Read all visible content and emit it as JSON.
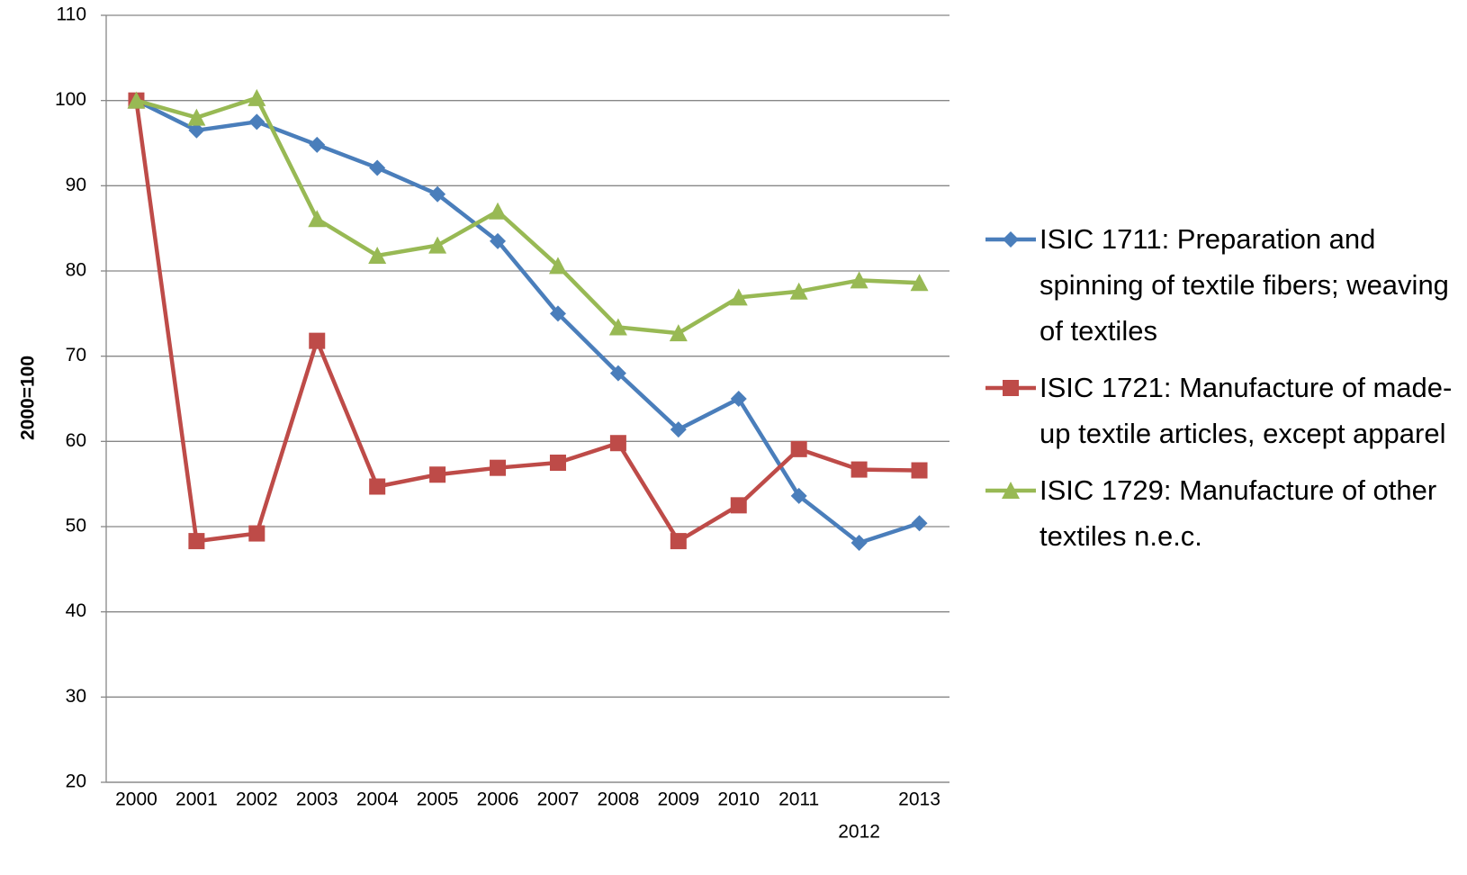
{
  "chart_data": {
    "type": "line",
    "y_label": "2000=100",
    "categories": [
      "2000",
      "2001",
      "2002",
      "2003",
      "2004",
      "2005",
      "2006",
      "2007",
      "2008",
      "2009",
      "2010",
      "2011",
      "2012",
      "2013"
    ],
    "series": [
      {
        "name": "ISIC 1711: Preparation and spinning of textile fibers; weaving of textiles",
        "color": "#4a7ebb",
        "marker": "diamond",
        "values": [
          100,
          96.5,
          97.5,
          94.8,
          92.1,
          89.0,
          83.5,
          75.0,
          68.0,
          61.4,
          65.0,
          53.6,
          48.1,
          50.4
        ]
      },
      {
        "name": "ISIC 1721: Manufacture of made-up textile articles, except apparel",
        "color": "#be4b48",
        "marker": "square",
        "values": [
          100,
          48.3,
          49.2,
          71.8,
          54.7,
          56.1,
          56.9,
          57.5,
          59.8,
          48.3,
          52.5,
          59.1,
          56.7,
          56.6
        ]
      },
      {
        "name": "ISIC 1729: Manufacture of other textiles n.e.c.",
        "color": "#98b954",
        "marker": "triangle",
        "values": [
          100,
          98.0,
          100.3,
          86.1,
          81.8,
          83.0,
          87.0,
          80.6,
          73.4,
          72.7,
          76.9,
          77.6,
          78.9,
          78.6
        ]
      }
    ],
    "ylim": [
      20,
      110
    ],
    "yticks": [
      20,
      30,
      40,
      50,
      60,
      70,
      80,
      90,
      100,
      110
    ],
    "grid": true,
    "legend": "right"
  }
}
